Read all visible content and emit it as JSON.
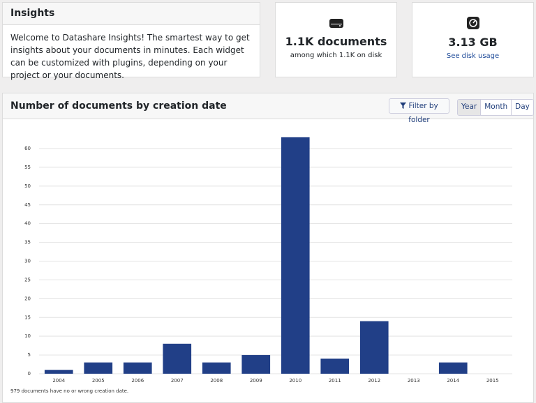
{
  "insights": {
    "title": "Insights",
    "text": "Welcome to Datashare Insights! The smartest way to get insights about your documents in minutes. Each widget can be customized with plugins, depending on your project or your documents."
  },
  "documents": {
    "value": "1.1K documents",
    "detail": "among which 1.1K on disk"
  },
  "disk": {
    "value": "3.13 GB",
    "link": "See disk usage"
  },
  "chart_data": {
    "type": "bar",
    "title": "Number of documents by creation date",
    "filter_button": "Filter by folder",
    "periods": [
      "Year",
      "Month",
      "Day"
    ],
    "active_period": "Year",
    "categories": [
      "2004",
      "2005",
      "2006",
      "2007",
      "2008",
      "2009",
      "2010",
      "2011",
      "2012",
      "2013",
      "2014",
      "2015"
    ],
    "values": [
      1,
      3,
      3,
      8,
      3,
      5,
      63,
      4,
      14,
      0,
      3,
      0
    ],
    "color": "#213f87",
    "ylim": [
      0,
      60
    ],
    "yticks": [
      0,
      5,
      10,
      15,
      20,
      25,
      30,
      35,
      40,
      45,
      50,
      55,
      60
    ],
    "grid": true,
    "footnote": "979 documents have no or wrong creation date."
  }
}
